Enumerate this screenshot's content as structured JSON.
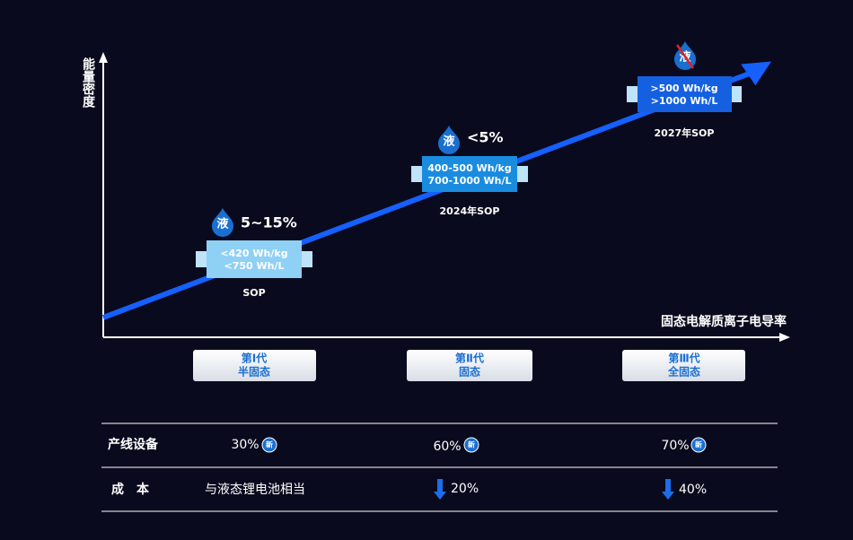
{
  "axes": {
    "y_label": "能量密度",
    "x_label": "固态电解质离子电导率"
  },
  "stages": [
    {
      "liquid_icon": "液",
      "liquid_ratio": "5~15%",
      "specs": [
        "<420 Wh/kg",
        "<750 Wh/L"
      ],
      "sop": "SOP"
    },
    {
      "liquid_icon": "液",
      "liquid_ratio": "<5%",
      "specs": [
        "400-500 Wh/kg",
        "700-1000 Wh/L"
      ],
      "sop": "2024年SOP"
    },
    {
      "liquid_icon": "液",
      "specs": [
        ">500 Wh/kg",
        ">1000 Wh/L"
      ],
      "sop": "2027年SOP"
    }
  ],
  "generations": [
    {
      "name": "第Ⅰ代",
      "type": "半固态"
    },
    {
      "name": "第Ⅱ代",
      "type": "固态"
    },
    {
      "name": "第Ⅲ代",
      "type": "全固态"
    }
  ],
  "table": {
    "rows": [
      {
        "label": "产线设备",
        "cells": [
          {
            "text": "30%",
            "badge": "新"
          },
          {
            "text": "60%",
            "badge": "新"
          },
          {
            "text": "70%",
            "badge": "新"
          }
        ]
      },
      {
        "label": "成　本",
        "cells": [
          {
            "text": "与液态锂电池相当"
          },
          {
            "text": "20%"
          },
          {
            "text": "40%"
          }
        ]
      }
    ]
  }
}
